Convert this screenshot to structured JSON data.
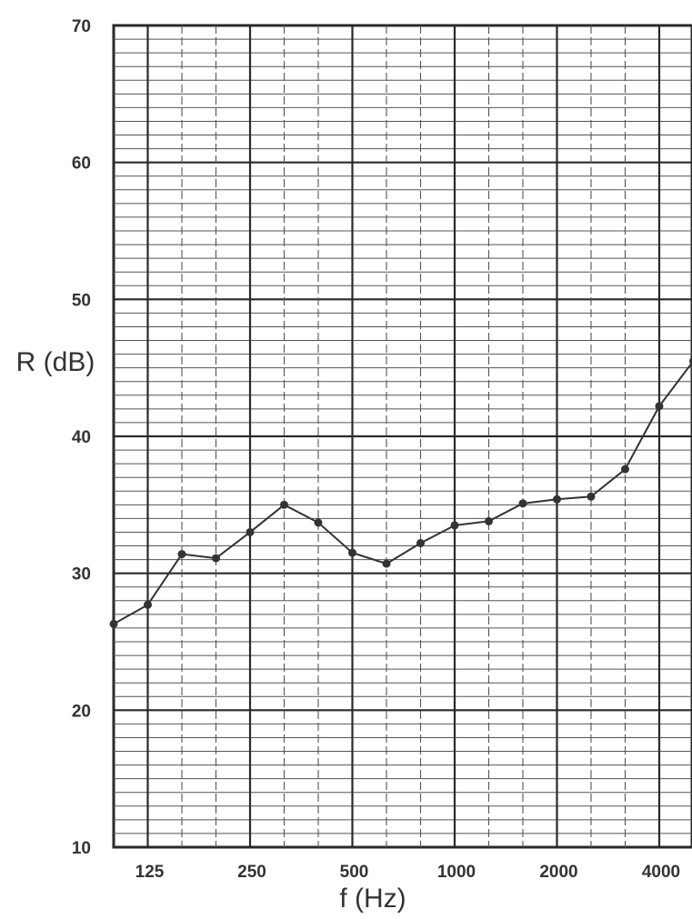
{
  "chart_data": {
    "type": "line",
    "xlabel": "f (Hz)",
    "ylabel": "R (dB)",
    "ylim": [
      10,
      70
    ],
    "x_scale": "log (third-octave bands)",
    "xticks": [
      "125",
      "250",
      "500",
      "1000",
      "2000",
      "4000"
    ],
    "yticks": [
      "10",
      "20",
      "30",
      "40",
      "50",
      "60",
      "70"
    ],
    "grid": true,
    "legend": "none",
    "x": [
      100,
      125,
      160,
      200,
      250,
      315,
      400,
      500,
      630,
      800,
      1000,
      1250,
      1600,
      2000,
      2500,
      3150,
      4000,
      5000
    ],
    "series": [
      {
        "values": [
          26.3,
          27.7,
          31.4,
          31.1,
          33.0,
          35.0,
          33.7,
          31.5,
          30.7,
          32.2,
          33.5,
          33.8,
          35.1,
          35.4,
          35.6,
          37.6,
          42.2,
          45.5
        ]
      }
    ],
    "colors": {
      "line": "#333333",
      "grid_major": "#2a2a2a",
      "grid_minor": "#555555"
    }
  }
}
